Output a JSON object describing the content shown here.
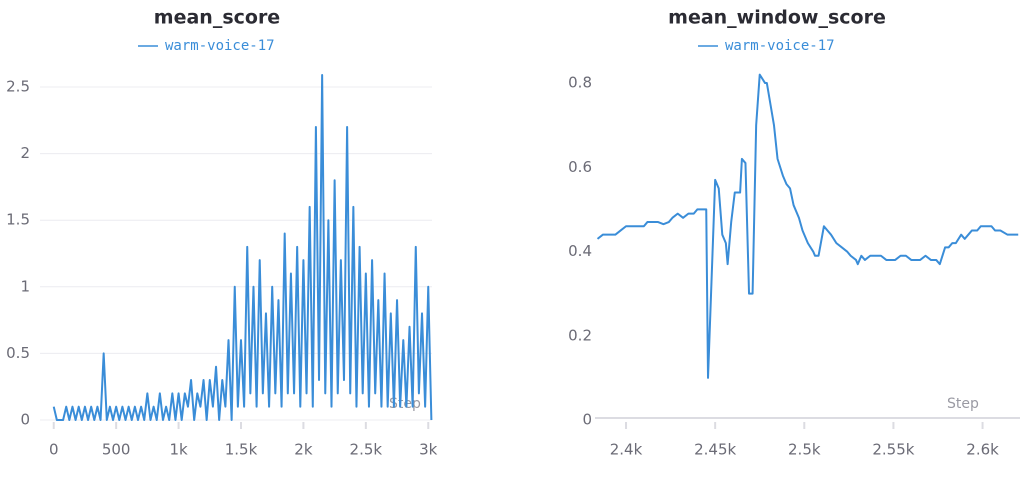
{
  "chart_data": [
    {
      "type": "line",
      "title": "mean_score",
      "x_label": "Step",
      "grid": true,
      "xlim": [
        -110,
        3030
      ],
      "ylim": [
        0,
        2.65
      ],
      "xticks": [
        0,
        500,
        {
          "value": 1000,
          "label": "1k"
        },
        {
          "value": 1500,
          "label": "1.5k"
        },
        {
          "value": 2000,
          "label": "2k"
        },
        {
          "value": 2500,
          "label": "2.5k"
        },
        {
          "value": 3000,
          "label": "3k"
        }
      ],
      "yticks": [
        0,
        0.5,
        1,
        1.5,
        2,
        2.5
      ],
      "x": [
        0,
        25,
        50,
        75,
        100,
        125,
        150,
        175,
        200,
        225,
        250,
        275,
        300,
        325,
        350,
        375,
        400,
        425,
        450,
        475,
        500,
        525,
        550,
        575,
        600,
        625,
        650,
        675,
        700,
        725,
        750,
        775,
        800,
        825,
        850,
        875,
        900,
        925,
        950,
        975,
        1000,
        1025,
        1050,
        1075,
        1100,
        1125,
        1150,
        1175,
        1200,
        1225,
        1250,
        1275,
        1300,
        1325,
        1350,
        1375,
        1400,
        1425,
        1450,
        1475,
        1500,
        1525,
        1550,
        1575,
        1600,
        1625,
        1650,
        1675,
        1700,
        1725,
        1750,
        1775,
        1800,
        1825,
        1850,
        1875,
        1900,
        1925,
        1950,
        1975,
        2000,
        2025,
        2050,
        2075,
        2100,
        2125,
        2150,
        2175,
        2200,
        2225,
        2250,
        2275,
        2300,
        2325,
        2350,
        2375,
        2400,
        2425,
        2450,
        2475,
        2500,
        2525,
        2550,
        2575,
        2600,
        2625,
        2650,
        2675,
        2700,
        2725,
        2750,
        2775,
        2800,
        2825,
        2850,
        2875,
        2900,
        2925,
        2950,
        2975,
        3000,
        3025
      ],
      "series": [
        {
          "name": "warm-voice-17",
          "color": "#3a8dd8",
          "values": [
            0.1,
            0,
            0,
            0,
            0.1,
            0,
            0.1,
            0,
            0.1,
            0,
            0.1,
            0,
            0.1,
            0,
            0.1,
            0,
            0.5,
            0,
            0.1,
            0,
            0.1,
            0,
            0.1,
            0,
            0.1,
            0,
            0.1,
            0,
            0.1,
            0,
            0.2,
            0,
            0.1,
            0,
            0.2,
            0,
            0.1,
            0,
            0.2,
            0,
            0.2,
            0,
            0.2,
            0.1,
            0.3,
            0,
            0.2,
            0.1,
            0.3,
            0,
            0.3,
            0.1,
            0.4,
            0,
            0.3,
            0.1,
            0.6,
            0,
            1.0,
            0.1,
            0.6,
            0.1,
            1.3,
            0.2,
            1.0,
            0.1,
            1.2,
            0.2,
            0.8,
            0.1,
            1.0,
            0.2,
            0.9,
            0.1,
            1.4,
            0.2,
            1.1,
            0.2,
            1.3,
            0.1,
            1.2,
            0.2,
            1.6,
            0.1,
            2.2,
            0.3,
            2.59,
            0.2,
            1.5,
            0.1,
            1.8,
            0.2,
            1.2,
            0.3,
            2.2,
            0.2,
            1.6,
            0.1,
            1.3,
            0.2,
            1.1,
            0.1,
            1.2,
            0.2,
            0.9,
            0.1,
            1.1,
            0.1,
            0.8,
            0.1,
            0.9,
            0.1,
            0.6,
            0.1,
            0.7,
            0.1,
            1.3,
            0.2,
            0.8,
            0.1,
            1.0,
            0
          ]
        }
      ]
    },
    {
      "type": "line",
      "title": "mean_window_score",
      "x_label": "Step",
      "grid": false,
      "xlim": [
        2382.6,
        2621
      ],
      "ylim": [
        0,
        0.85
      ],
      "xticks": [
        {
          "value": 2400,
          "label": "2.4k"
        },
        {
          "value": 2450,
          "label": "2.45k"
        },
        {
          "value": 2500,
          "label": "2.5k"
        },
        {
          "value": 2550,
          "label": "2.55k"
        },
        {
          "value": 2600,
          "label": "2.6k"
        }
      ],
      "yticks": [
        0,
        0.2,
        0.4,
        0.6,
        0.8
      ],
      "x": [
        2384,
        2387,
        2391,
        2394,
        2397,
        2400,
        2403,
        2406,
        2410,
        2412,
        2415,
        2418,
        2421,
        2424,
        2426,
        2429,
        2432,
        2435,
        2438,
        2440,
        2443,
        2445,
        2446,
        2450,
        2452,
        2454,
        2456,
        2457,
        2459,
        2461,
        2464,
        2465,
        2467,
        2469,
        2471,
        2473,
        2475,
        2478,
        2479,
        2481,
        2483,
        2485,
        2488,
        2490,
        2492,
        2494,
        2497,
        2499,
        2502,
        2505,
        2506,
        2508,
        2511,
        2513,
        2515,
        2518,
        2521,
        2524,
        2526,
        2529,
        2530,
        2532,
        2534,
        2537,
        2540,
        2543,
        2546,
        2548,
        2551,
        2554,
        2557,
        2560,
        2562,
        2565,
        2568,
        2571,
        2574,
        2576,
        2579,
        2581,
        2583,
        2585,
        2588,
        2590,
        2592,
        2594,
        2597,
        2599,
        2602,
        2605,
        2607,
        2610,
        2614,
        2618,
        2620
      ],
      "series": [
        {
          "name": "warm-voice-17",
          "color": "#3a8dd8",
          "values": [
            0.43,
            0.44,
            0.44,
            0.44,
            0.45,
            0.46,
            0.46,
            0.46,
            0.46,
            0.47,
            0.47,
            0.47,
            0.465,
            0.47,
            0.48,
            0.49,
            0.48,
            0.49,
            0.49,
            0.5,
            0.5,
            0.5,
            0.1,
            0.57,
            0.55,
            0.44,
            0.42,
            0.37,
            0.47,
            0.54,
            0.54,
            0.62,
            0.61,
            0.3,
            0.3,
            0.7,
            0.82,
            0.8,
            0.8,
            0.75,
            0.7,
            0.62,
            0.58,
            0.56,
            0.55,
            0.51,
            0.48,
            0.45,
            0.42,
            0.4,
            0.39,
            0.39,
            0.46,
            0.45,
            0.44,
            0.42,
            0.41,
            0.4,
            0.39,
            0.38,
            0.37,
            0.39,
            0.38,
            0.39,
            0.39,
            0.39,
            0.38,
            0.38,
            0.38,
            0.39,
            0.39,
            0.38,
            0.38,
            0.38,
            0.39,
            0.38,
            0.38,
            0.37,
            0.41,
            0.41,
            0.42,
            0.42,
            0.44,
            0.43,
            0.44,
            0.45,
            0.45,
            0.46,
            0.46,
            0.46,
            0.45,
            0.45,
            0.44,
            0.44,
            0.44
          ]
        }
      ]
    }
  ]
}
